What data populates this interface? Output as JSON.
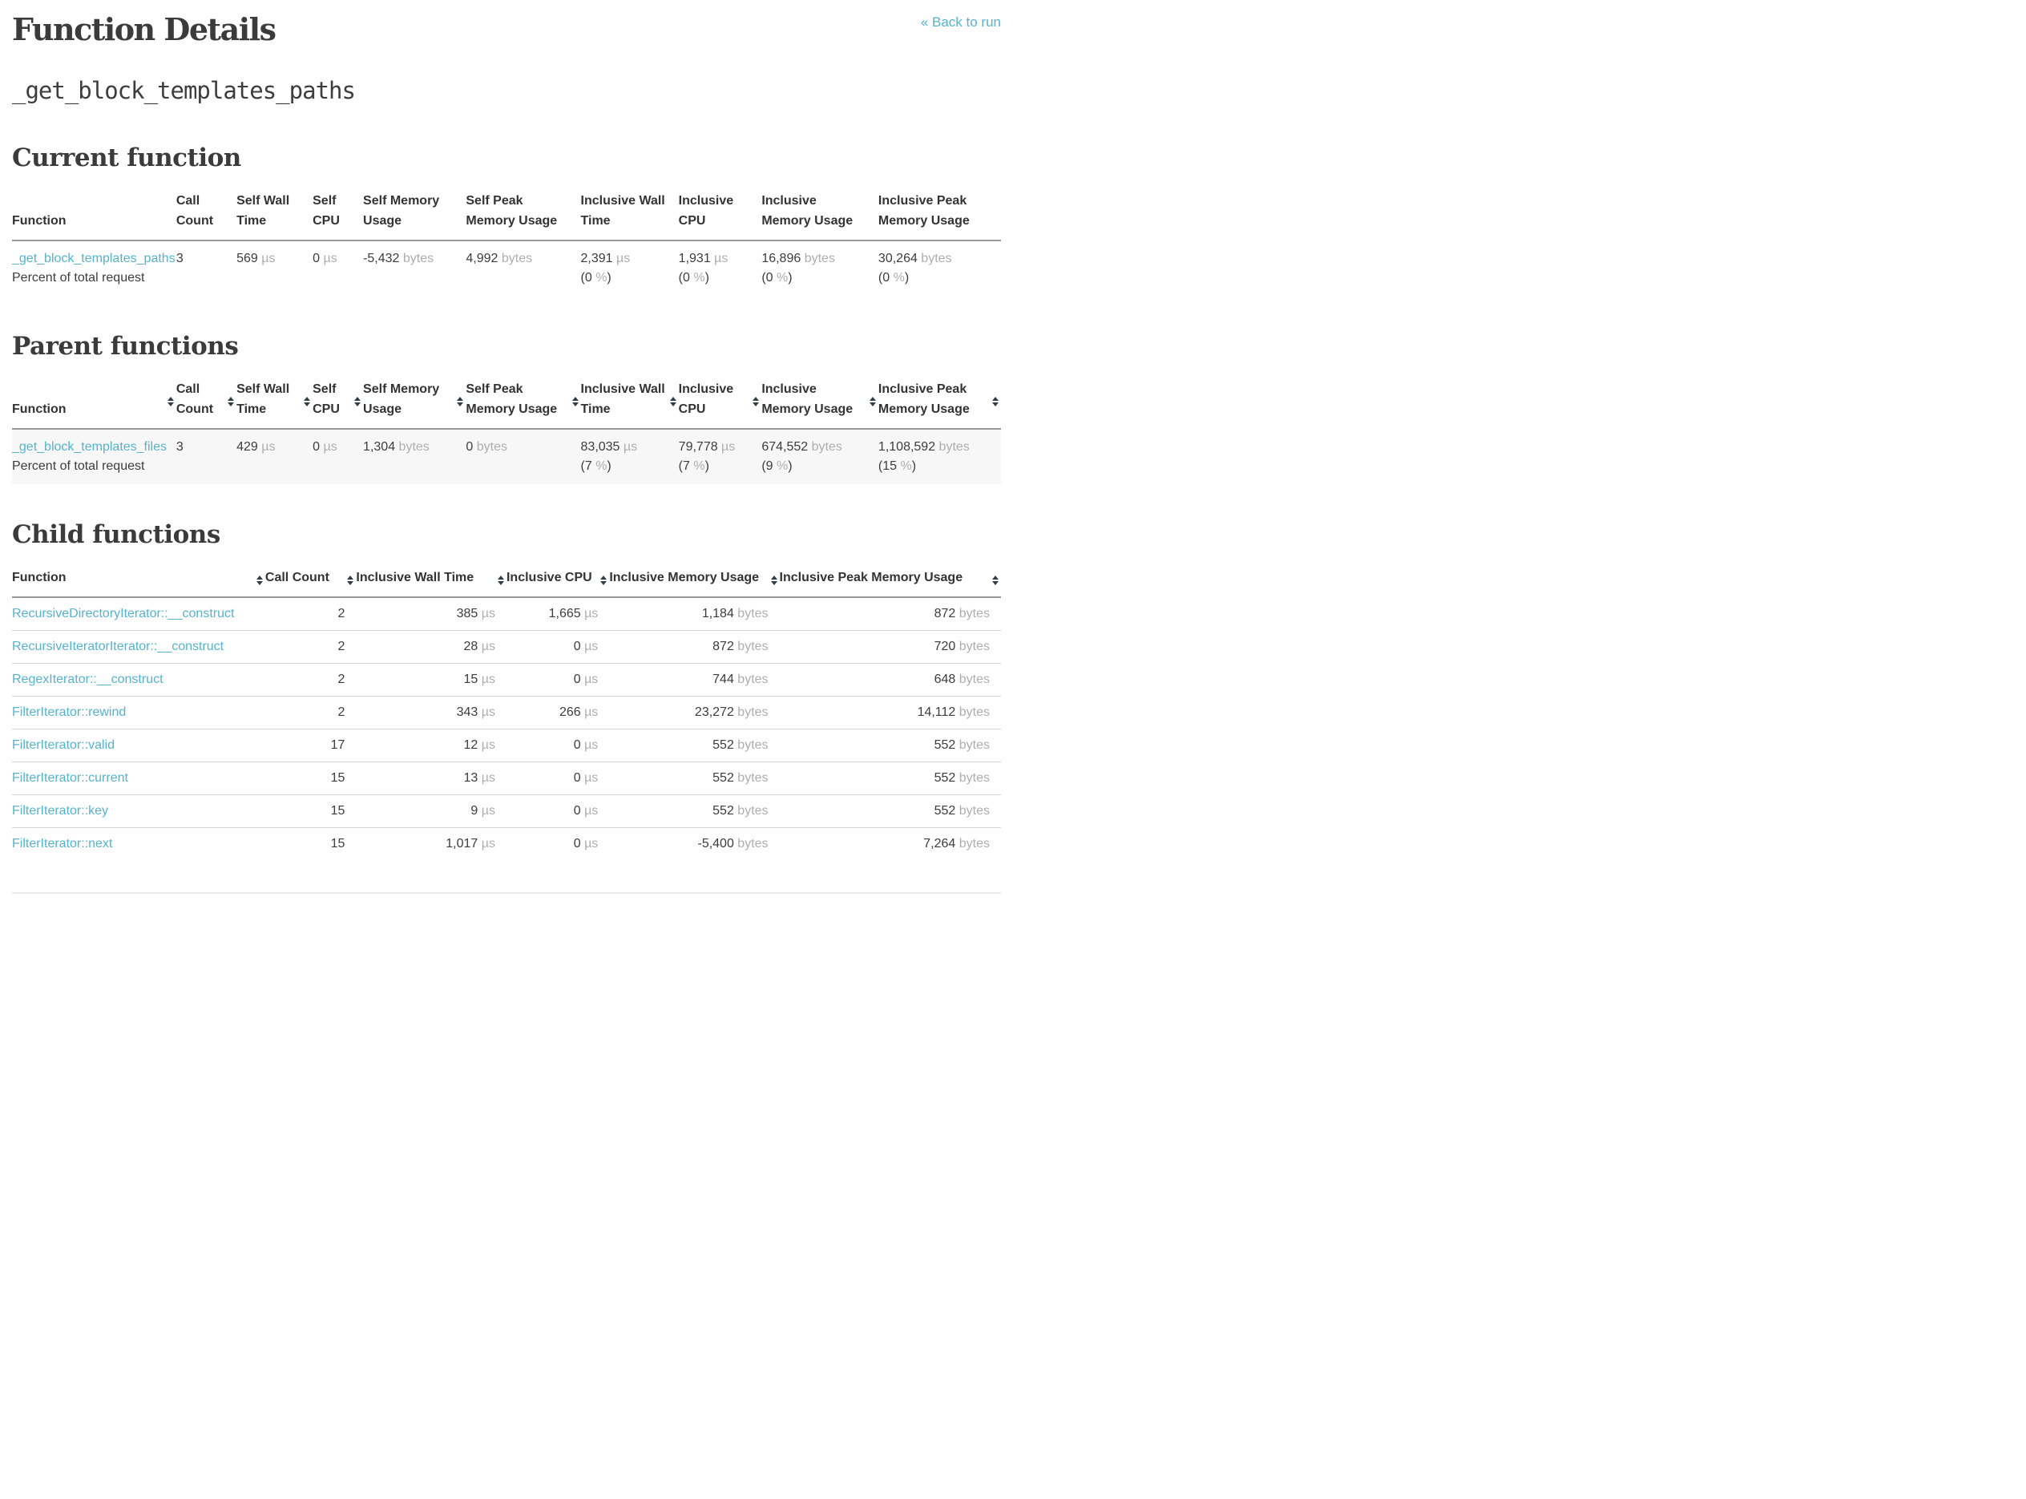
{
  "header": {
    "title": "Function Details",
    "back_link": "« Back to run",
    "function_name": "_get_block_templates_paths"
  },
  "colors": {
    "link": "#56b3ce",
    "text": "#3c3c3c",
    "unit_text": "#aeaeae",
    "thead_border": "#999999",
    "row_border": "#d6d6d6",
    "striped_row_bg": "#f7f7f7"
  },
  "tables": {
    "current": {
      "heading": "Current function",
      "sortable": false,
      "columns": [
        "Function",
        "Call Count",
        "Self Wall Time",
        "Self CPU",
        "Self Memory Usage",
        "Self Peak Memory Usage",
        "Inclusive Wall Time",
        "Inclusive CPU",
        "Inclusive Memory Usage",
        "Inclusive Peak Memory Usage"
      ],
      "col_widths": [
        "16.6%",
        "6.1%",
        "7.7%",
        "5.1%",
        "10.4%",
        "11.6%",
        "9.9%",
        "8.4%",
        "11.8%",
        "12.4%"
      ],
      "align": "left",
      "rows": [
        {
          "function": "_get_block_templates_paths",
          "note": "Percent of total request",
          "striped": false,
          "cells": [
            {
              "num": "3"
            },
            {
              "num": "569",
              "unit": "µs"
            },
            {
              "num": "0",
              "unit": "µs"
            },
            {
              "num": "-5,432",
              "unit": "bytes"
            },
            {
              "num": "4,992",
              "unit": "bytes"
            },
            {
              "num": "2,391",
              "unit": "µs",
              "pct": "0"
            },
            {
              "num": "1,931",
              "unit": "µs",
              "pct": "0"
            },
            {
              "num": "16,896",
              "unit": "bytes",
              "pct": "0"
            },
            {
              "num": "30,264",
              "unit": "bytes",
              "pct": "0"
            }
          ]
        }
      ]
    },
    "parents": {
      "heading": "Parent functions",
      "sortable": true,
      "columns": [
        "Function",
        "Call Count",
        "Self Wall Time",
        "Self CPU",
        "Self Memory Usage",
        "Self Peak Memory Usage",
        "Inclusive Wall Time",
        "Inclusive CPU",
        "Inclusive Memory Usage",
        "Inclusive Peak Memory Usage"
      ],
      "col_widths": [
        "16.6%",
        "6.1%",
        "7.7%",
        "5.1%",
        "10.4%",
        "11.6%",
        "9.9%",
        "8.4%",
        "11.8%",
        "12.4%"
      ],
      "align": "left",
      "rows": [
        {
          "function": "_get_block_templates_files",
          "note": "Percent of total request",
          "striped": true,
          "cells": [
            {
              "num": "3"
            },
            {
              "num": "429",
              "unit": "µs"
            },
            {
              "num": "0",
              "unit": "µs"
            },
            {
              "num": "1,304",
              "unit": "bytes"
            },
            {
              "num": "0",
              "unit": "bytes"
            },
            {
              "num": "83,035",
              "unit": "µs",
              "pct": "7"
            },
            {
              "num": "79,778",
              "unit": "µs",
              "pct": "7"
            },
            {
              "num": "674,552",
              "unit": "bytes",
              "pct": "9"
            },
            {
              "num": "1,108,592",
              "unit": "bytes",
              "pct": "15"
            }
          ]
        }
      ]
    },
    "children": {
      "heading": "Child functions",
      "sortable": true,
      "columns": [
        "Function",
        "Call Count",
        "Inclusive Wall Time",
        "Inclusive CPU",
        "Inclusive Memory Usage",
        "Inclusive Peak Memory Usage"
      ],
      "col_widths": [
        "25.6%",
        "9.2%",
        "15.2%",
        "10.4%",
        "17.2%",
        "22.4%"
      ],
      "align": "right",
      "rows": [
        {
          "function": "RecursiveDirectoryIterator::__construct",
          "striped": false,
          "cells": [
            {
              "num": "2"
            },
            {
              "num": "385",
              "unit": "µs"
            },
            {
              "num": "1,665",
              "unit": "µs"
            },
            {
              "num": "1,184",
              "unit": "bytes"
            },
            {
              "num": "872",
              "unit": "bytes"
            }
          ]
        },
        {
          "function": "RecursiveIteratorIterator::__construct",
          "striped": false,
          "cells": [
            {
              "num": "2"
            },
            {
              "num": "28",
              "unit": "µs"
            },
            {
              "num": "0",
              "unit": "µs"
            },
            {
              "num": "872",
              "unit": "bytes"
            },
            {
              "num": "720",
              "unit": "bytes"
            }
          ]
        },
        {
          "function": "RegexIterator::__construct",
          "striped": false,
          "cells": [
            {
              "num": "2"
            },
            {
              "num": "15",
              "unit": "µs"
            },
            {
              "num": "0",
              "unit": "µs"
            },
            {
              "num": "744",
              "unit": "bytes"
            },
            {
              "num": "648",
              "unit": "bytes"
            }
          ]
        },
        {
          "function": "FilterIterator::rewind",
          "striped": false,
          "cells": [
            {
              "num": "2"
            },
            {
              "num": "343",
              "unit": "µs"
            },
            {
              "num": "266",
              "unit": "µs"
            },
            {
              "num": "23,272",
              "unit": "bytes"
            },
            {
              "num": "14,112",
              "unit": "bytes"
            }
          ]
        },
        {
          "function": "FilterIterator::valid",
          "striped": false,
          "cells": [
            {
              "num": "17"
            },
            {
              "num": "12",
              "unit": "µs"
            },
            {
              "num": "0",
              "unit": "µs"
            },
            {
              "num": "552",
              "unit": "bytes"
            },
            {
              "num": "552",
              "unit": "bytes"
            }
          ]
        },
        {
          "function": "FilterIterator::current",
          "striped": false,
          "cells": [
            {
              "num": "15"
            },
            {
              "num": "13",
              "unit": "µs"
            },
            {
              "num": "0",
              "unit": "µs"
            },
            {
              "num": "552",
              "unit": "bytes"
            },
            {
              "num": "552",
              "unit": "bytes"
            }
          ]
        },
        {
          "function": "FilterIterator::key",
          "striped": false,
          "cells": [
            {
              "num": "15"
            },
            {
              "num": "9",
              "unit": "µs"
            },
            {
              "num": "0",
              "unit": "µs"
            },
            {
              "num": "552",
              "unit": "bytes"
            },
            {
              "num": "552",
              "unit": "bytes"
            }
          ]
        },
        {
          "function": "FilterIterator::next",
          "striped": false,
          "cells": [
            {
              "num": "15"
            },
            {
              "num": "1,017",
              "unit": "µs"
            },
            {
              "num": "0",
              "unit": "µs"
            },
            {
              "num": "-5,400",
              "unit": "bytes"
            },
            {
              "num": "7,264",
              "unit": "bytes"
            }
          ]
        }
      ]
    }
  }
}
